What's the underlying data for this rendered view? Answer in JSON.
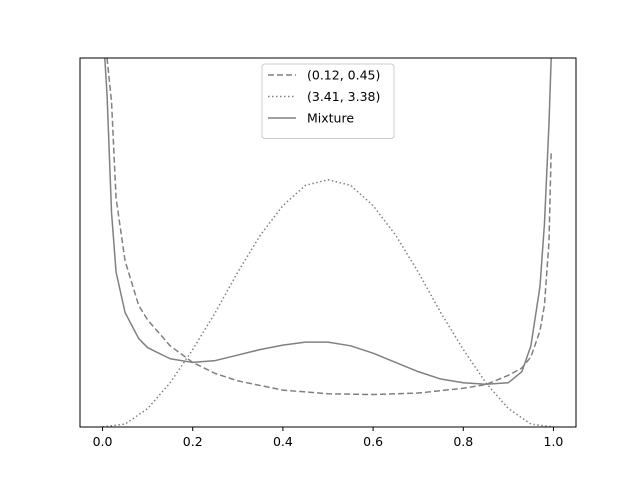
{
  "chart_data": {
    "type": "line",
    "xlim": [
      -0.05,
      1.05
    ],
    "ylim": [
      0,
      1
    ],
    "x_ticks": [
      0.0,
      0.2,
      0.4,
      0.6,
      0.8,
      1.0
    ],
    "x_tick_labels": [
      "0.0",
      "0.2",
      "0.4",
      "0.6",
      "0.8",
      "1.0"
    ],
    "y_ticks_shown": false,
    "grid": false,
    "legend_position": "top-center",
    "colors": {
      "line": "#808080",
      "legend_border": "#cccccc"
    },
    "series": [
      {
        "name": "(0.12, 0.45)",
        "style": "dashed",
        "x": [
          0.01,
          0.02,
          0.03,
          0.05,
          0.08,
          0.1,
          0.15,
          0.2,
          0.25,
          0.3,
          0.4,
          0.5,
          0.6,
          0.7,
          0.8,
          0.85,
          0.9,
          0.93,
          0.95,
          0.97,
          0.98,
          0.99,
          0.995
        ],
        "y": [
          1.0,
          0.88,
          0.62,
          0.45,
          0.33,
          0.29,
          0.22,
          0.175,
          0.145,
          0.125,
          0.1,
          0.09,
          0.088,
          0.092,
          0.105,
          0.115,
          0.14,
          0.16,
          0.19,
          0.26,
          0.33,
          0.5,
          0.75
        ]
      },
      {
        "name": "(3.41, 3.38)",
        "style": "dotted",
        "x": [
          0.0,
          0.05,
          0.1,
          0.15,
          0.2,
          0.25,
          0.3,
          0.35,
          0.4,
          0.45,
          0.5,
          0.55,
          0.6,
          0.65,
          0.7,
          0.75,
          0.8,
          0.85,
          0.9,
          0.95,
          1.0
        ],
        "y": [
          0.0,
          0.008,
          0.05,
          0.12,
          0.21,
          0.31,
          0.42,
          0.52,
          0.6,
          0.655,
          0.67,
          0.655,
          0.6,
          0.52,
          0.42,
          0.31,
          0.21,
          0.12,
          0.05,
          0.008,
          0.0
        ]
      },
      {
        "name": "Mixture",
        "style": "solid",
        "x": [
          0.005,
          0.01,
          0.02,
          0.03,
          0.05,
          0.08,
          0.1,
          0.15,
          0.2,
          0.25,
          0.3,
          0.35,
          0.4,
          0.45,
          0.5,
          0.55,
          0.6,
          0.65,
          0.7,
          0.75,
          0.8,
          0.85,
          0.9,
          0.93,
          0.95,
          0.97,
          0.98,
          0.99,
          0.995
        ],
        "y": [
          1.0,
          0.9,
          0.58,
          0.42,
          0.31,
          0.24,
          0.215,
          0.185,
          0.175,
          0.18,
          0.195,
          0.21,
          0.222,
          0.23,
          0.23,
          0.22,
          0.2,
          0.175,
          0.15,
          0.13,
          0.12,
          0.116,
          0.12,
          0.15,
          0.22,
          0.38,
          0.55,
          0.82,
          1.0
        ]
      }
    ]
  }
}
